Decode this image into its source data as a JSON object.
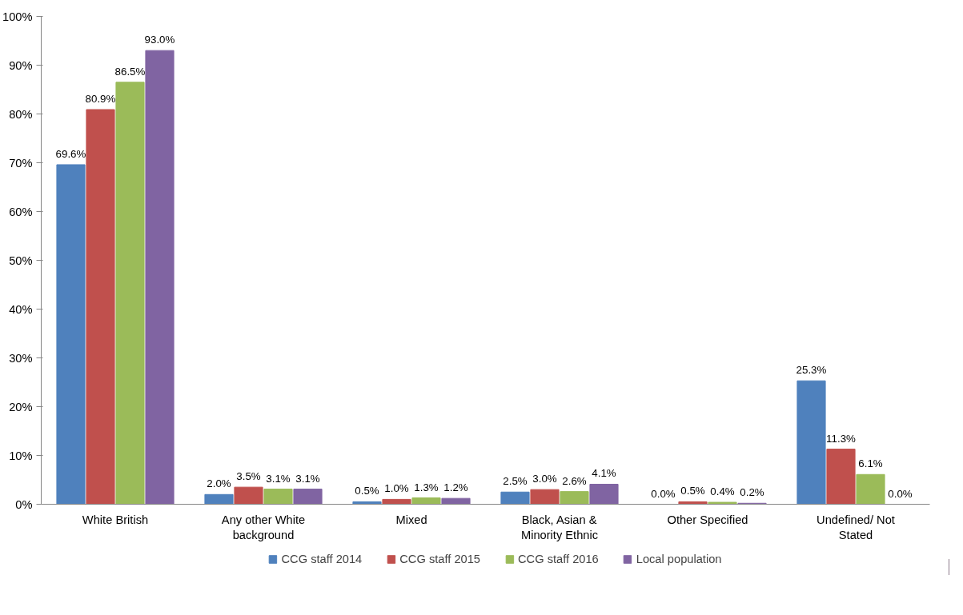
{
  "chart_data": {
    "type": "bar",
    "categories": [
      "White British",
      "Any other White background",
      "Mixed",
      "Black, Asian & Minority Ethnic",
      "Other Specified",
      "Undefined/ Not Stated"
    ],
    "series": [
      {
        "name": "CCG staff 2014",
        "color": "#4f81bd",
        "values": [
          69.6,
          2.0,
          0.5,
          2.5,
          0.0,
          25.3
        ],
        "value_labels": [
          "69.6%",
          "2.0%",
          "0.5%",
          "2.5%",
          "0.0%",
          "25.3%"
        ]
      },
      {
        "name": "CCG staff 2015",
        "color": "#c0504d",
        "values": [
          80.9,
          3.5,
          1.0,
          3.0,
          0.5,
          11.3
        ],
        "value_labels": [
          "80.9%",
          "3.5%",
          "1.0%",
          "3.0%",
          "0.5%",
          "11.3%"
        ]
      },
      {
        "name": "CCG staff 2016",
        "color": "#9bbb59",
        "values": [
          86.5,
          3.1,
          1.3,
          2.6,
          0.4,
          6.1
        ],
        "value_labels": [
          "86.5%",
          "3.1%",
          "1.3%",
          "2.6%",
          "0.4%",
          "6.1%"
        ]
      },
      {
        "name": "Local population",
        "color": "#8064a2",
        "values": [
          93.0,
          3.1,
          1.2,
          4.1,
          0.2,
          0.0
        ],
        "value_labels": [
          "93.0%",
          "3.1%",
          "1.2%",
          "4.1%",
          "0.2%",
          "0.0%"
        ]
      }
    ],
    "ylim": [
      0,
      100
    ],
    "yticks": [
      {
        "value": 0,
        "label": "0%"
      },
      {
        "value": 10,
        "label": "10%"
      },
      {
        "value": 20,
        "label": "20%"
      },
      {
        "value": 30,
        "label": "30%"
      },
      {
        "value": 40,
        "label": "40%"
      },
      {
        "value": 50,
        "label": "50%"
      },
      {
        "value": 60,
        "label": "60%"
      },
      {
        "value": 70,
        "label": "70%"
      },
      {
        "value": 80,
        "label": "80%"
      },
      {
        "value": 90,
        "label": "90%"
      },
      {
        "value": 100,
        "label": "100%"
      }
    ],
    "grid": false,
    "legend": "bottom"
  }
}
